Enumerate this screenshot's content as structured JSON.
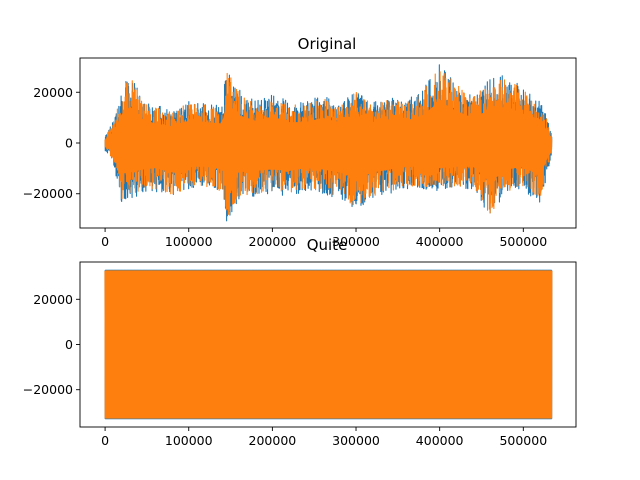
{
  "chart_data": [
    {
      "type": "line",
      "title": "Original",
      "xlabel": "",
      "ylabel": "",
      "xlim": [
        -30000,
        563000
      ],
      "ylim": [
        -33500,
        33500
      ],
      "xticks": [
        0,
        100000,
        200000,
        300000,
        400000,
        500000
      ],
      "xtick_labels": [
        "0",
        "100000",
        "200000",
        "300000",
        "400000",
        "500000"
      ],
      "yticks": [
        -20000,
        0,
        20000
      ],
      "ytick_labels": [
        "−20000",
        "0",
        "20000"
      ],
      "x_range": [
        0,
        534000
      ],
      "grid": false,
      "legend": "none",
      "series": [
        {
          "color": "#1f77b4",
          "envelope_x": [
            0,
            10000,
            20000,
            30000,
            45000,
            60000,
            80000,
            100000,
            120000,
            140000,
            145000,
            160000,
            180000,
            200000,
            220000,
            240000,
            260000,
            280000,
            300000,
            320000,
            340000,
            360000,
            380000,
            400000,
            420000,
            440000,
            460000,
            480000,
            500000,
            520000,
            534000
          ],
          "envelope_max": [
            3000,
            9000,
            22000,
            27000,
            18000,
            15000,
            13000,
            17000,
            16000,
            15000,
            30000,
            21000,
            17000,
            20000,
            16000,
            16000,
            19000,
            16000,
            21000,
            16000,
            18000,
            17000,
            21000,
            31000,
            24000,
            19000,
            25000,
            27000,
            22000,
            18000,
            4000
          ],
          "envelope_min": [
            -3000,
            -8000,
            -24000,
            -22000,
            -20000,
            -19000,
            -22000,
            -18000,
            -18000,
            -20000,
            -31000,
            -22000,
            -21000,
            -20000,
            -21000,
            -19000,
            -20000,
            -22000,
            -26000,
            -22000,
            -20000,
            -18000,
            -18000,
            -19000,
            -18000,
            -18000,
            -29000,
            -20000,
            -18000,
            -25000,
            -4000
          ]
        },
        {
          "color": "#ff7f0e",
          "envelope_x": [
            0,
            10000,
            20000,
            30000,
            45000,
            60000,
            80000,
            100000,
            120000,
            140000,
            145000,
            160000,
            180000,
            200000,
            220000,
            240000,
            260000,
            280000,
            300000,
            320000,
            340000,
            360000,
            380000,
            400000,
            420000,
            440000,
            460000,
            480000,
            500000,
            520000,
            534000
          ],
          "envelope_max": [
            2500,
            8000,
            21000,
            26000,
            17000,
            14000,
            12000,
            16000,
            15000,
            14000,
            29000,
            20000,
            16000,
            19000,
            15000,
            15000,
            18000,
            15000,
            20000,
            15000,
            17000,
            16000,
            20000,
            30000,
            23000,
            18000,
            24000,
            26000,
            21000,
            17000,
            3500
          ],
          "envelope_min": [
            -2500,
            -7000,
            -22000,
            -21000,
            -19000,
            -18000,
            -21000,
            -17000,
            -17000,
            -19000,
            -30000,
            -21000,
            -20000,
            -19000,
            -20000,
            -18000,
            -19000,
            -21000,
            -25000,
            -21000,
            -19000,
            -17000,
            -17000,
            -18000,
            -17000,
            -17000,
            -28000,
            -19000,
            -17000,
            -24000,
            -3500
          ]
        }
      ]
    },
    {
      "type": "line",
      "title": "Quite",
      "xlabel": "",
      "ylabel": "",
      "xlim": [
        -30000,
        563000
      ],
      "ylim": [
        -36500,
        36500
      ],
      "xticks": [
        0,
        100000,
        200000,
        300000,
        400000,
        500000
      ],
      "xtick_labels": [
        "0",
        "100000",
        "200000",
        "300000",
        "400000",
        "500000"
      ],
      "yticks": [
        -20000,
        0,
        20000
      ],
      "ytick_labels": [
        "−20000",
        "0",
        "20000"
      ],
      "x_range": [
        0,
        534000
      ],
      "grid": false,
      "legend": "none",
      "series": [
        {
          "color": "#1f77b4",
          "max": 32767,
          "min": -32768
        },
        {
          "color": "#ff7f0e",
          "max": 32500,
          "min": -32500
        }
      ]
    }
  ]
}
